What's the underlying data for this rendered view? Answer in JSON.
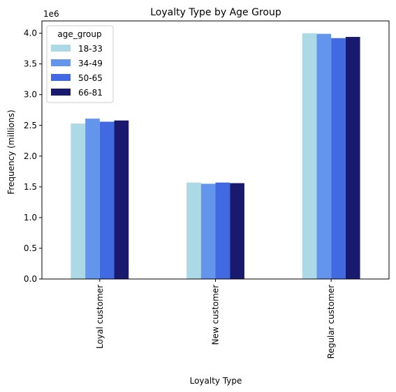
{
  "chart_data": {
    "type": "bar",
    "title": "Loyalty Type by Age Group",
    "xlabel": "Loyalty Type",
    "ylabel": "Frequency (millions)",
    "offset_label": "1e6",
    "categories": [
      "Loyal customer",
      "New customer",
      "Regular customer"
    ],
    "yticks": [
      0.0,
      0.5,
      1.0,
      1.5,
      2.0,
      2.5,
      3.0,
      3.5,
      4.0
    ],
    "ytick_labels": [
      "0.0",
      "0.5",
      "1.0",
      "1.5",
      "2.0",
      "2.5",
      "3.0",
      "3.5",
      "4.0"
    ],
    "ylim": [
      0,
      4.2
    ],
    "grid": false,
    "legend": {
      "title": "age_group",
      "position": "top-left"
    },
    "series": [
      {
        "name": "18-33",
        "color": "#add8e6",
        "values": [
          2.53,
          1.57,
          4.0
        ]
      },
      {
        "name": "34-49",
        "color": "#6495ed",
        "values": [
          2.61,
          1.55,
          3.99
        ]
      },
      {
        "name": "50-65",
        "color": "#4169e1",
        "values": [
          2.56,
          1.57,
          3.92
        ]
      },
      {
        "name": "66-81",
        "color": "#191970",
        "values": [
          2.58,
          1.56,
          3.94
        ]
      }
    ]
  }
}
